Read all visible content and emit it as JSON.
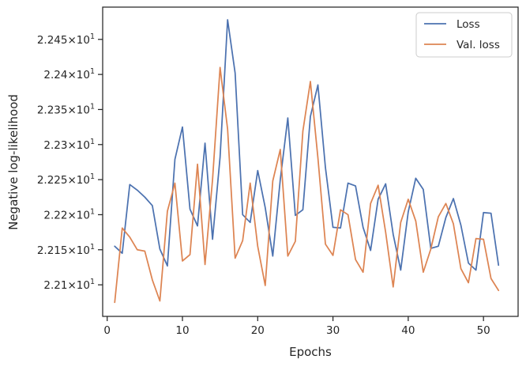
{
  "chart_data": {
    "type": "line",
    "xlabel": "Epochs",
    "ylabel": "Negative log-likelihood",
    "xlim": [
      -0.6,
      54.6
    ],
    "ylim": [
      22.055,
      22.496
    ],
    "xticks": [
      0,
      10,
      20,
      30,
      40,
      50
    ],
    "yticks": [
      {
        "value": 22.1,
        "mantissa": "2.21",
        "base": "10",
        "exp": "1"
      },
      {
        "value": 22.15,
        "mantissa": "2.215",
        "base": "10",
        "exp": "1"
      },
      {
        "value": 22.2,
        "mantissa": "2.22",
        "base": "10",
        "exp": "1"
      },
      {
        "value": 22.25,
        "mantissa": "2.225",
        "base": "10",
        "exp": "1"
      },
      {
        "value": 22.3,
        "mantissa": "2.23",
        "base": "10",
        "exp": "1"
      },
      {
        "value": 22.35,
        "mantissa": "2.235",
        "base": "10",
        "exp": "1"
      },
      {
        "value": 22.4,
        "mantissa": "2.24",
        "base": "10",
        "exp": "1"
      },
      {
        "value": 22.45,
        "mantissa": "2.245",
        "base": "10",
        "exp": "1"
      }
    ],
    "y_scale": "log",
    "legend_position": "top-right",
    "grid": false,
    "x": [
      1,
      2,
      3,
      4,
      5,
      6,
      7,
      8,
      9,
      10,
      11,
      12,
      13,
      14,
      15,
      16,
      17,
      18,
      19,
      20,
      21,
      22,
      23,
      24,
      25,
      26,
      27,
      28,
      29,
      30,
      31,
      32,
      33,
      34,
      35,
      36,
      37,
      38,
      39,
      40,
      41,
      42,
      43,
      44,
      45,
      46,
      47,
      48,
      49,
      50,
      51,
      52
    ],
    "series": [
      {
        "name": "Loss",
        "color": "#4c72b0",
        "values": [
          22.155,
          22.145,
          22.243,
          22.235,
          22.225,
          22.213,
          22.151,
          22.127,
          22.279,
          22.325,
          22.208,
          22.184,
          22.302,
          22.165,
          22.282,
          22.478,
          22.402,
          22.2,
          22.189,
          22.263,
          22.21,
          22.141,
          22.25,
          22.338,
          22.199,
          22.207,
          22.34,
          22.385,
          22.267,
          22.182,
          22.181,
          22.245,
          22.241,
          22.182,
          22.149,
          22.222,
          22.244,
          22.172,
          22.121,
          22.204,
          22.252,
          22.236,
          22.152,
          22.155,
          22.196,
          22.223,
          22.185,
          22.131,
          22.121,
          22.203,
          22.202,
          22.128
        ]
      },
      {
        "name": "Val. loss",
        "color": "#dd8452",
        "values": [
          22.075,
          22.181,
          22.168,
          22.15,
          22.148,
          22.107,
          22.077,
          22.205,
          22.245,
          22.134,
          22.143,
          22.272,
          22.129,
          22.25,
          22.41,
          22.322,
          22.138,
          22.163,
          22.245,
          22.155,
          22.099,
          22.248,
          22.293,
          22.141,
          22.162,
          22.319,
          22.39,
          22.281,
          22.158,
          22.142,
          22.207,
          22.2,
          22.136,
          22.118,
          22.216,
          22.242,
          22.175,
          22.097,
          22.189,
          22.222,
          22.191,
          22.118,
          22.151,
          22.197,
          22.216,
          22.187,
          22.123,
          22.103,
          22.166,
          22.165,
          22.109,
          22.092
        ]
      }
    ]
  }
}
